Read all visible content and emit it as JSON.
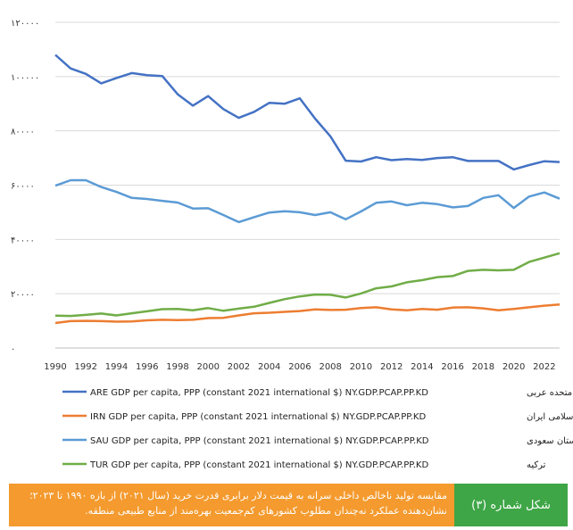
{
  "chart_data": {
    "type": "line",
    "title": "",
    "xlabel": "",
    "ylabel": "",
    "ylim": [
      0,
      120000
    ],
    "xlim": [
      1990,
      2023
    ],
    "y_ticks": [
      0,
      20000,
      40000,
      60000,
      80000,
      100000,
      120000
    ],
    "y_tick_labels": [
      "۰",
      "۲۰۰۰۰",
      "۴۰۰۰۰",
      "۶۰۰۰۰",
      "۸۰۰۰۰",
      "۱۰۰۰۰۰",
      "۱۲۰۰۰۰"
    ],
    "x_tick_labels": [
      "1990",
      "1992",
      "1994",
      "1996",
      "1998",
      "2000",
      "2002",
      "2004",
      "2006",
      "2008",
      "2010",
      "2012",
      "2014",
      "2016",
      "2018",
      "2020",
      "2022"
    ],
    "grid": "horizontal",
    "legend_position": "bottom",
    "x": [
      1990,
      1991,
      1992,
      1993,
      1994,
      1995,
      1996,
      1997,
      1998,
      1999,
      2000,
      2001,
      2002,
      2003,
      2004,
      2005,
      2006,
      2007,
      2008,
      2009,
      2010,
      2011,
      2012,
      2013,
      2014,
      2015,
      2016,
      2017,
      2018,
      2019,
      2020,
      2021,
      2022,
      2023
    ],
    "series": [
      {
        "name": "ARE GDP per capita, PPP (constant 2021 international $) NY.GDP.PCAP.PP.KD",
        "name_fa": "امارات متحده عربی",
        "color": "#4472c4",
        "values": [
          108000,
          103000,
          101000,
          97500,
          99500,
          101300,
          100500,
          100200,
          93500,
          89300,
          92800,
          88000,
          84800,
          87000,
          90300,
          90000,
          92000,
          84500,
          78000,
          69000,
          68700,
          70300,
          69200,
          69600,
          69300,
          70000,
          70300,
          68900,
          68900,
          68900,
          65800,
          67400,
          68800,
          68500
        ]
      },
      {
        "name": "IRN GDP per capita, PPP (constant 2021 international $) NY.GDP.PCAP.PP.KD",
        "name_fa": "جمهوری اسلامی ایران",
        "color": "#ed7d31",
        "values": [
          9200,
          9900,
          10000,
          9900,
          9700,
          9800,
          10200,
          10400,
          10300,
          10400,
          11000,
          11100,
          12000,
          12800,
          13000,
          13300,
          13600,
          14200,
          14000,
          14100,
          14700,
          15000,
          14200,
          13900,
          14400,
          14100,
          14900,
          15000,
          14600,
          13900,
          14400,
          15000,
          15600,
          16000
        ]
      },
      {
        "name": "SAU GDP per capita, PPP (constant 2021 international $) NY.GDP.PCAP.PP.KD",
        "name_fa": "عربستان سعودی",
        "color": "#5b9bd5",
        "values": [
          59800,
          61800,
          61800,
          59300,
          57500,
          55300,
          54900,
          54200,
          53600,
          51400,
          51500,
          49000,
          46400,
          48200,
          49900,
          50400,
          50000,
          49000,
          50000,
          47400,
          50300,
          53500,
          54000,
          52600,
          53500,
          53000,
          51800,
          52300,
          55300,
          56300,
          51600,
          55800,
          57300,
          55000
        ]
      },
      {
        "name": "TUR GDP per capita, PPP (constant 2021 international $) NY.GDP.PCAP.PP.KD",
        "name_fa": "ترکیه",
        "color": "#70ad47",
        "values": [
          11900,
          11800,
          12200,
          12700,
          12000,
          12800,
          13500,
          14300,
          14400,
          13900,
          14700,
          13700,
          14500,
          15200,
          16600,
          18000,
          19000,
          19700,
          19600,
          18600,
          20100,
          22000,
          22700,
          24200,
          25000,
          26100,
          26500,
          28400,
          28800,
          28600,
          28800,
          31700,
          33300,
          34900
        ]
      }
    ]
  },
  "caption": {
    "text": "مقایسه تولید ناخالص داخلی سرانه به قیمت دلار برابری قدرت خرید (سال ۲۰۲۱) از بازه ۱۹۹۰ تا ۲۰۲۳؛ نشان‌دهنده عملکرد نه‌چندان مطلوب کشورهای کم‌جمعیت بهره‌مند از منابع طبیعی منطقه.",
    "label": "شکل شماره (۳)",
    "bg_color": "#f49a2e",
    "label_bg_color": "#3ea646"
  }
}
